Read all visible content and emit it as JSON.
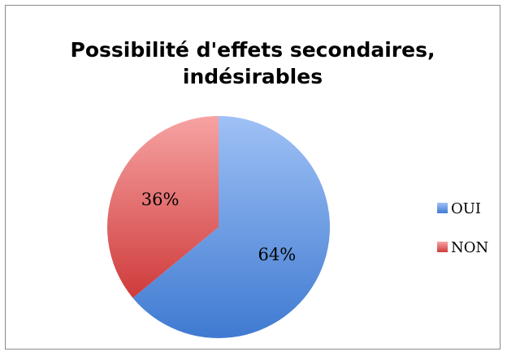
{
  "chart_data": {
    "type": "pie",
    "title_lines": [
      "Possibilité d'effets secondaires,",
      "indésirables"
    ],
    "slices": [
      {
        "label": "OUI",
        "value": 64,
        "display": "64%",
        "color": "#4f81d2"
      },
      {
        "label": "NON",
        "value": 36,
        "display": "36%",
        "color": "#d44a4a"
      }
    ],
    "legend_position": "right"
  }
}
